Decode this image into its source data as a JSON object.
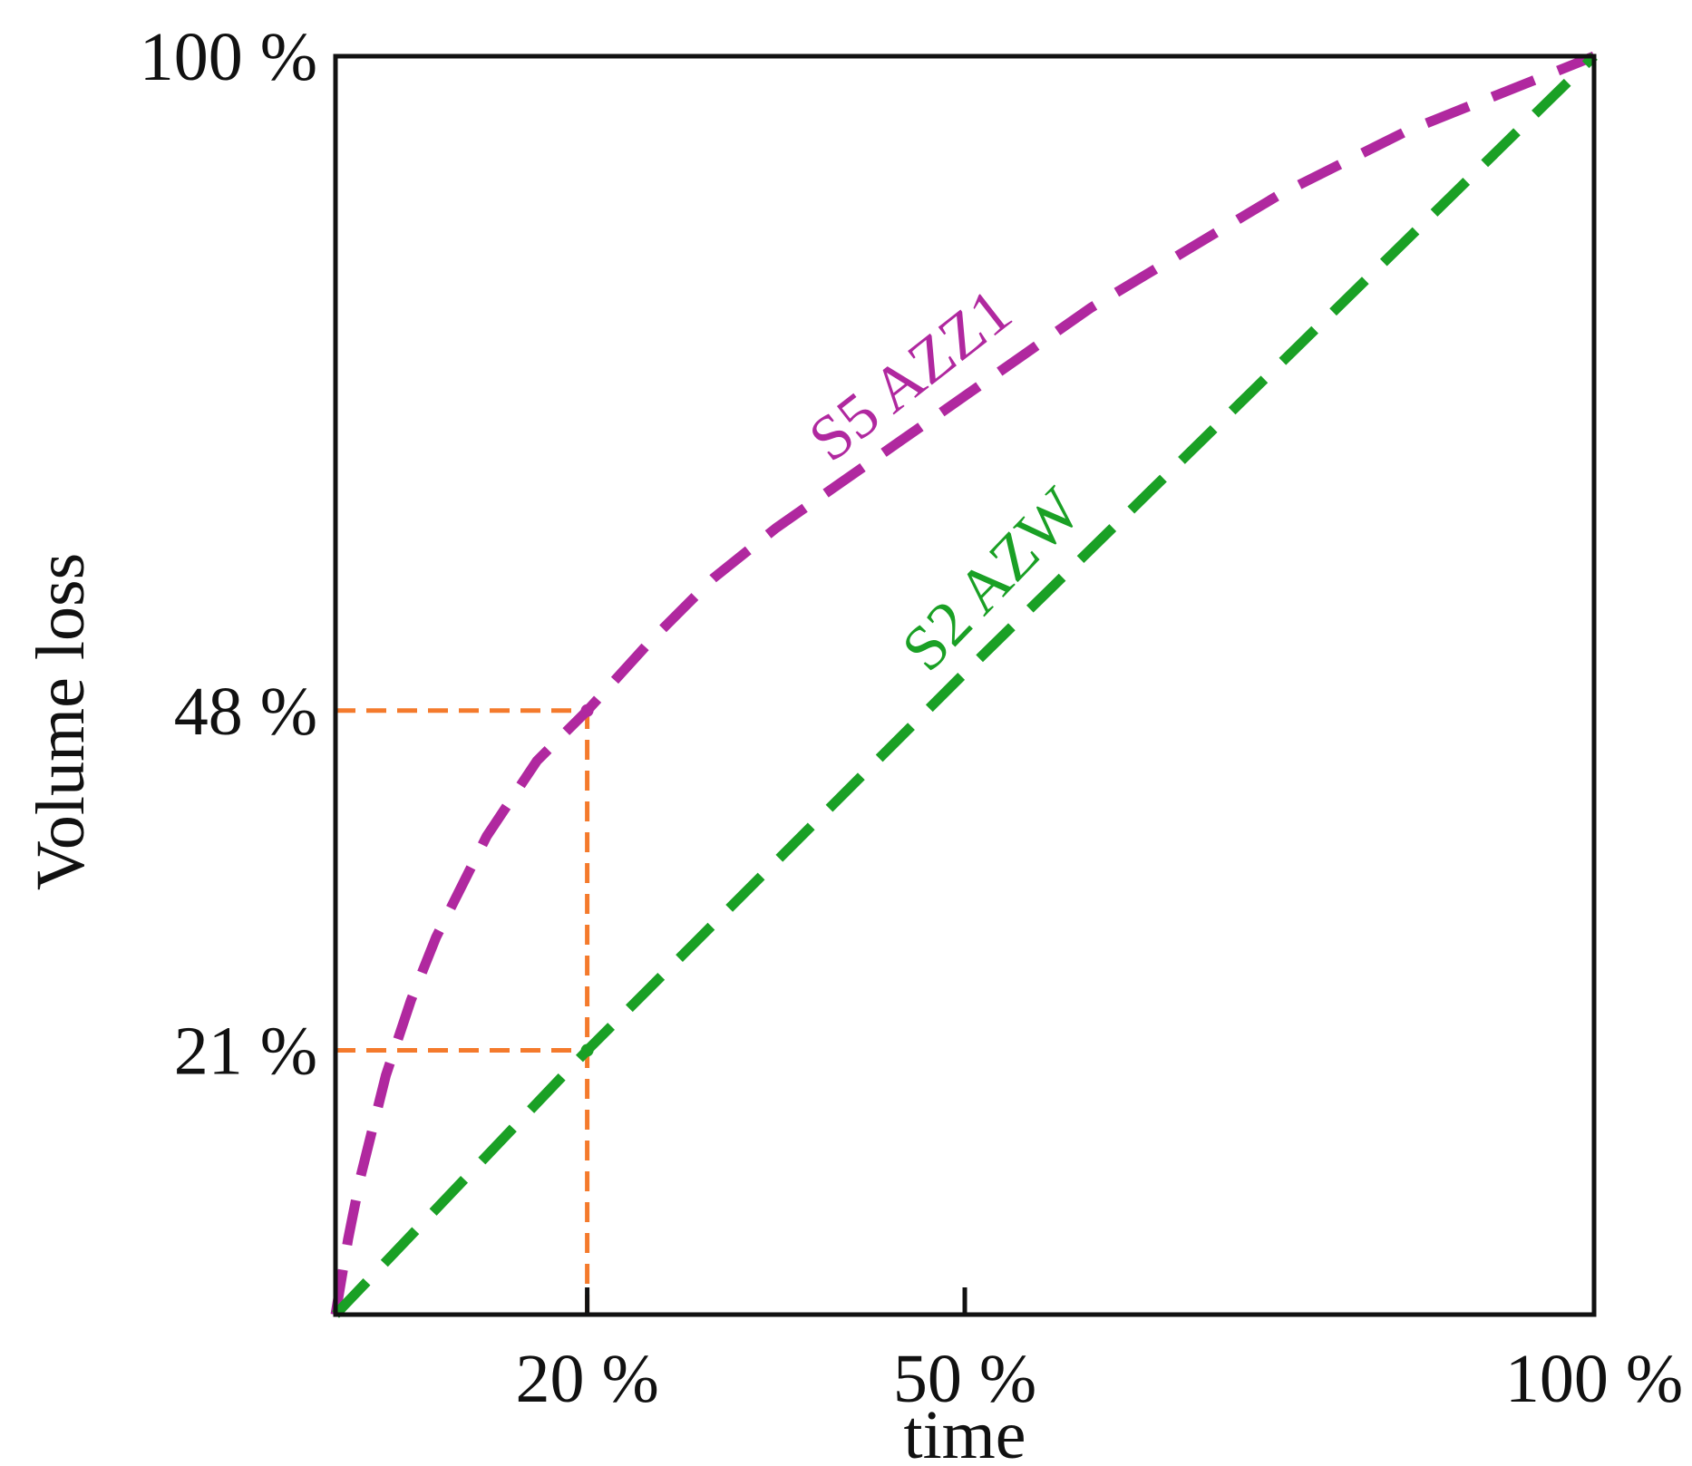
{
  "chart_data": {
    "type": "line",
    "xlabel": "time",
    "ylabel": "Volume loss",
    "xlim": [
      0,
      100
    ],
    "ylim": [
      0,
      100
    ],
    "x_ticks": [
      {
        "value": 20,
        "label": "20 %"
      },
      {
        "value": 50,
        "label": "50 %"
      },
      {
        "value": 100,
        "label": "100 %"
      }
    ],
    "y_ticks": [
      {
        "value": 21,
        "label": "21 %"
      },
      {
        "value": 48,
        "label": "48 %"
      },
      {
        "value": 100,
        "label": "100 %"
      }
    ],
    "series": [
      {
        "name": "S5 AZZ1",
        "color": "#b0289f",
        "style": "dashed",
        "x": [
          0,
          1,
          2,
          4,
          6,
          8,
          10,
          12,
          14,
          16,
          18,
          20,
          25,
          30,
          35,
          40,
          45,
          50,
          55,
          60,
          65,
          70,
          75,
          80,
          85,
          90,
          95,
          100
        ],
        "y": [
          0,
          6,
          11,
          19,
          25,
          30,
          34,
          38,
          41,
          44,
          46,
          48,
          53.5,
          58.5,
          62.5,
          66,
          69.5,
          73,
          76.5,
          80,
          83,
          86,
          89,
          91.5,
          94,
          96,
          98,
          100
        ]
      },
      {
        "name": "S2 AZW",
        "color": "#1aa025",
        "style": "dashed",
        "x": [
          0,
          20,
          50,
          100
        ],
        "y": [
          0,
          21,
          51,
          100
        ]
      }
    ],
    "reference_lines": [
      {
        "color": "#f47a2c",
        "from": [
          0,
          48
        ],
        "to": [
          20,
          48
        ]
      },
      {
        "color": "#f47a2c",
        "from": [
          0,
          21
        ],
        "to": [
          20,
          21
        ]
      },
      {
        "color": "#f47a2c",
        "from": [
          20,
          0
        ],
        "to": [
          20,
          48
        ]
      }
    ],
    "grid": false,
    "legend": "none"
  }
}
